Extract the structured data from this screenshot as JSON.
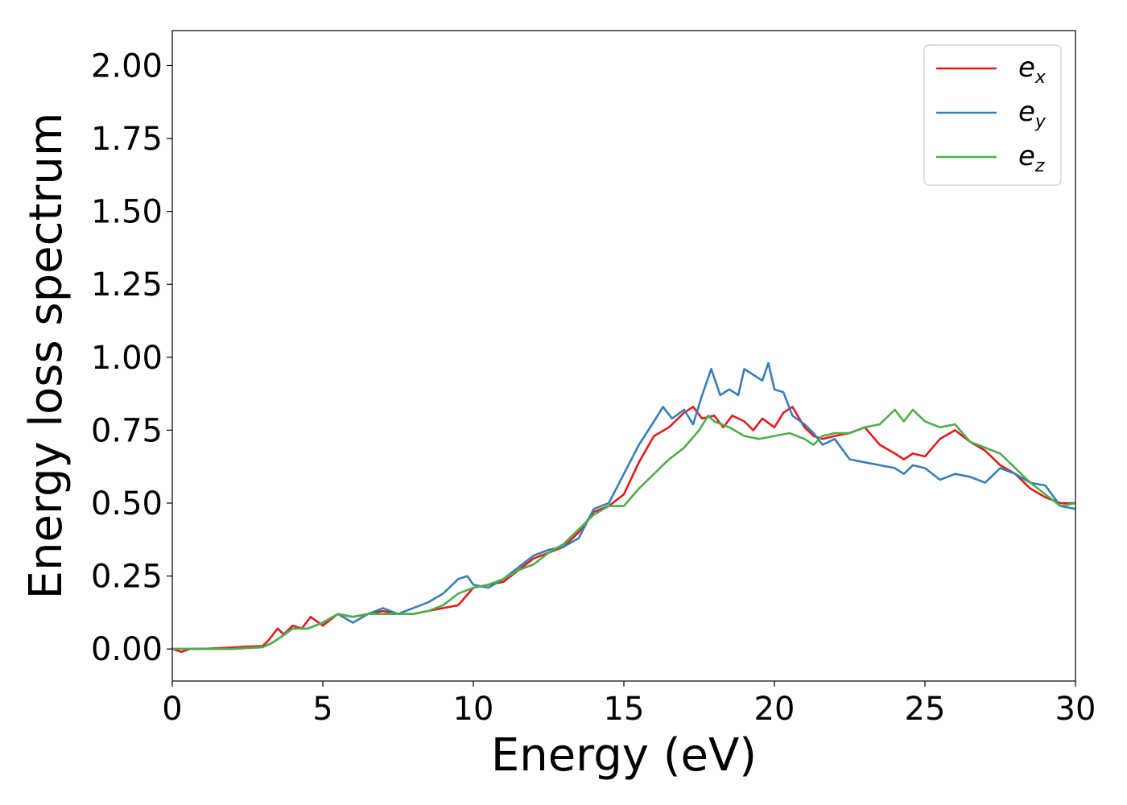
{
  "chart_data": {
    "type": "line",
    "xlabel": "Energy (eV)",
    "ylabel": "Energy loss spectrum",
    "xlim": [
      0,
      30
    ],
    "ylim": [
      -0.11,
      2.12
    ],
    "xticks": [
      0,
      5,
      10,
      15,
      20,
      25,
      30
    ],
    "xtick_labels": [
      "0",
      "5",
      "10",
      "15",
      "20",
      "25",
      "30"
    ],
    "yticks": [
      0.0,
      0.25,
      0.5,
      0.75,
      1.0,
      1.25,
      1.5,
      1.75,
      2.0
    ],
    "ytick_labels": [
      "0.00",
      "0.25",
      "0.50",
      "0.75",
      "1.00",
      "1.25",
      "1.50",
      "1.75",
      "2.00"
    ],
    "grid": false,
    "legend_position": "top-right",
    "series": [
      {
        "name": "e_x",
        "legend_base": "e",
        "legend_sub": "x",
        "color": "#e41a1c",
        "x": [
          0,
          0.3,
          0.6,
          1,
          2,
          2.5,
          3,
          3.2,
          3.5,
          3.7,
          4,
          4.3,
          4.6,
          5,
          5.5,
          6,
          6.5,
          7,
          7.5,
          8,
          8.5,
          9,
          9.5,
          10,
          10.5,
          11,
          11.5,
          12,
          12.5,
          13,
          13.5,
          14,
          14.5,
          15,
          15.5,
          16,
          16.5,
          17,
          17.3,
          17.6,
          18,
          18.3,
          18.6,
          19,
          19.3,
          19.6,
          20,
          20.3,
          20.6,
          21,
          21.3,
          21.6,
          22,
          22.5,
          23,
          23.5,
          24,
          24.3,
          24.6,
          25,
          25.5,
          26,
          26.5,
          27,
          27.5,
          28,
          28.5,
          29,
          29.5,
          30
        ],
        "y": [
          0,
          -0.01,
          0,
          0,
          0.005,
          0.008,
          0.01,
          0.03,
          0.07,
          0.05,
          0.08,
          0.07,
          0.11,
          0.08,
          0.12,
          0.11,
          0.12,
          0.13,
          0.12,
          0.12,
          0.13,
          0.14,
          0.15,
          0.21,
          0.22,
          0.23,
          0.27,
          0.31,
          0.33,
          0.35,
          0.4,
          0.47,
          0.49,
          0.53,
          0.64,
          0.73,
          0.76,
          0.81,
          0.83,
          0.79,
          0.8,
          0.76,
          0.8,
          0.78,
          0.75,
          0.79,
          0.76,
          0.81,
          0.83,
          0.76,
          0.73,
          0.72,
          0.73,
          0.74,
          0.76,
          0.7,
          0.67,
          0.65,
          0.67,
          0.66,
          0.72,
          0.75,
          0.71,
          0.68,
          0.63,
          0.6,
          0.55,
          0.52,
          0.5,
          0.5
        ]
      },
      {
        "name": "e_y",
        "legend_base": "e",
        "legend_sub": "y",
        "color": "#377eb8",
        "x": [
          0,
          0.5,
          1,
          2,
          2.5,
          3,
          3.3,
          3.6,
          4,
          4.5,
          5,
          5.5,
          6,
          6.5,
          7,
          7.5,
          8,
          8.5,
          9,
          9.5,
          9.8,
          10,
          10.5,
          11,
          11.5,
          12,
          12.5,
          13,
          13.5,
          14,
          14.5,
          15,
          15.5,
          16,
          16.3,
          16.6,
          17,
          17.3,
          17.6,
          17.9,
          18.2,
          18.5,
          18.8,
          19,
          19.3,
          19.6,
          19.8,
          20,
          20.3,
          20.6,
          21,
          21.3,
          21.6,
          22,
          22.5,
          23,
          23.5,
          24,
          24.3,
          24.6,
          25,
          25.5,
          26,
          26.5,
          27,
          27.5,
          28,
          28.5,
          29,
          29.5,
          30
        ],
        "y": [
          0,
          0,
          0,
          0,
          0.003,
          0.006,
          0.02,
          0.04,
          0.07,
          0.07,
          0.09,
          0.12,
          0.09,
          0.12,
          0.14,
          0.12,
          0.14,
          0.16,
          0.19,
          0.24,
          0.25,
          0.22,
          0.21,
          0.24,
          0.28,
          0.32,
          0.34,
          0.35,
          0.38,
          0.48,
          0.5,
          0.6,
          0.7,
          0.78,
          0.83,
          0.79,
          0.82,
          0.77,
          0.87,
          0.96,
          0.87,
          0.89,
          0.87,
          0.96,
          0.94,
          0.92,
          0.98,
          0.89,
          0.88,
          0.8,
          0.77,
          0.74,
          0.7,
          0.72,
          0.65,
          0.64,
          0.63,
          0.62,
          0.6,
          0.63,
          0.62,
          0.58,
          0.6,
          0.59,
          0.57,
          0.62,
          0.6,
          0.57,
          0.56,
          0.49,
          0.48
        ]
      },
      {
        "name": "e_z",
        "legend_base": "e",
        "legend_sub": "z",
        "color": "#4daf4a",
        "x": [
          0,
          0.5,
          1,
          2,
          2.5,
          3,
          3.3,
          3.6,
          4,
          4.5,
          5,
          5.5,
          6,
          6.5,
          7,
          7.5,
          8,
          8.5,
          9,
          9.5,
          10,
          10.5,
          11,
          11.5,
          12,
          12.5,
          13,
          13.5,
          14,
          14.5,
          15,
          15.5,
          16,
          16.5,
          17,
          17.5,
          17.8,
          18,
          18.5,
          19,
          19.5,
          20,
          20.5,
          21,
          21.3,
          21.6,
          22,
          22.5,
          23,
          23.5,
          24,
          24.3,
          24.6,
          25,
          25.5,
          26,
          26.5,
          27,
          27.5,
          28,
          28.5,
          29,
          29.5,
          30
        ],
        "y": [
          0,
          0,
          0,
          0,
          0.003,
          0.006,
          0.02,
          0.04,
          0.07,
          0.07,
          0.09,
          0.12,
          0.11,
          0.12,
          0.12,
          0.12,
          0.12,
          0.13,
          0.15,
          0.19,
          0.21,
          0.22,
          0.24,
          0.27,
          0.29,
          0.33,
          0.36,
          0.41,
          0.46,
          0.49,
          0.49,
          0.55,
          0.6,
          0.65,
          0.69,
          0.75,
          0.8,
          0.78,
          0.76,
          0.73,
          0.72,
          0.73,
          0.74,
          0.72,
          0.7,
          0.73,
          0.74,
          0.74,
          0.76,
          0.77,
          0.82,
          0.78,
          0.82,
          0.78,
          0.76,
          0.77,
          0.71,
          0.69,
          0.67,
          0.62,
          0.57,
          0.53,
          0.49,
          0.5
        ]
      }
    ]
  }
}
